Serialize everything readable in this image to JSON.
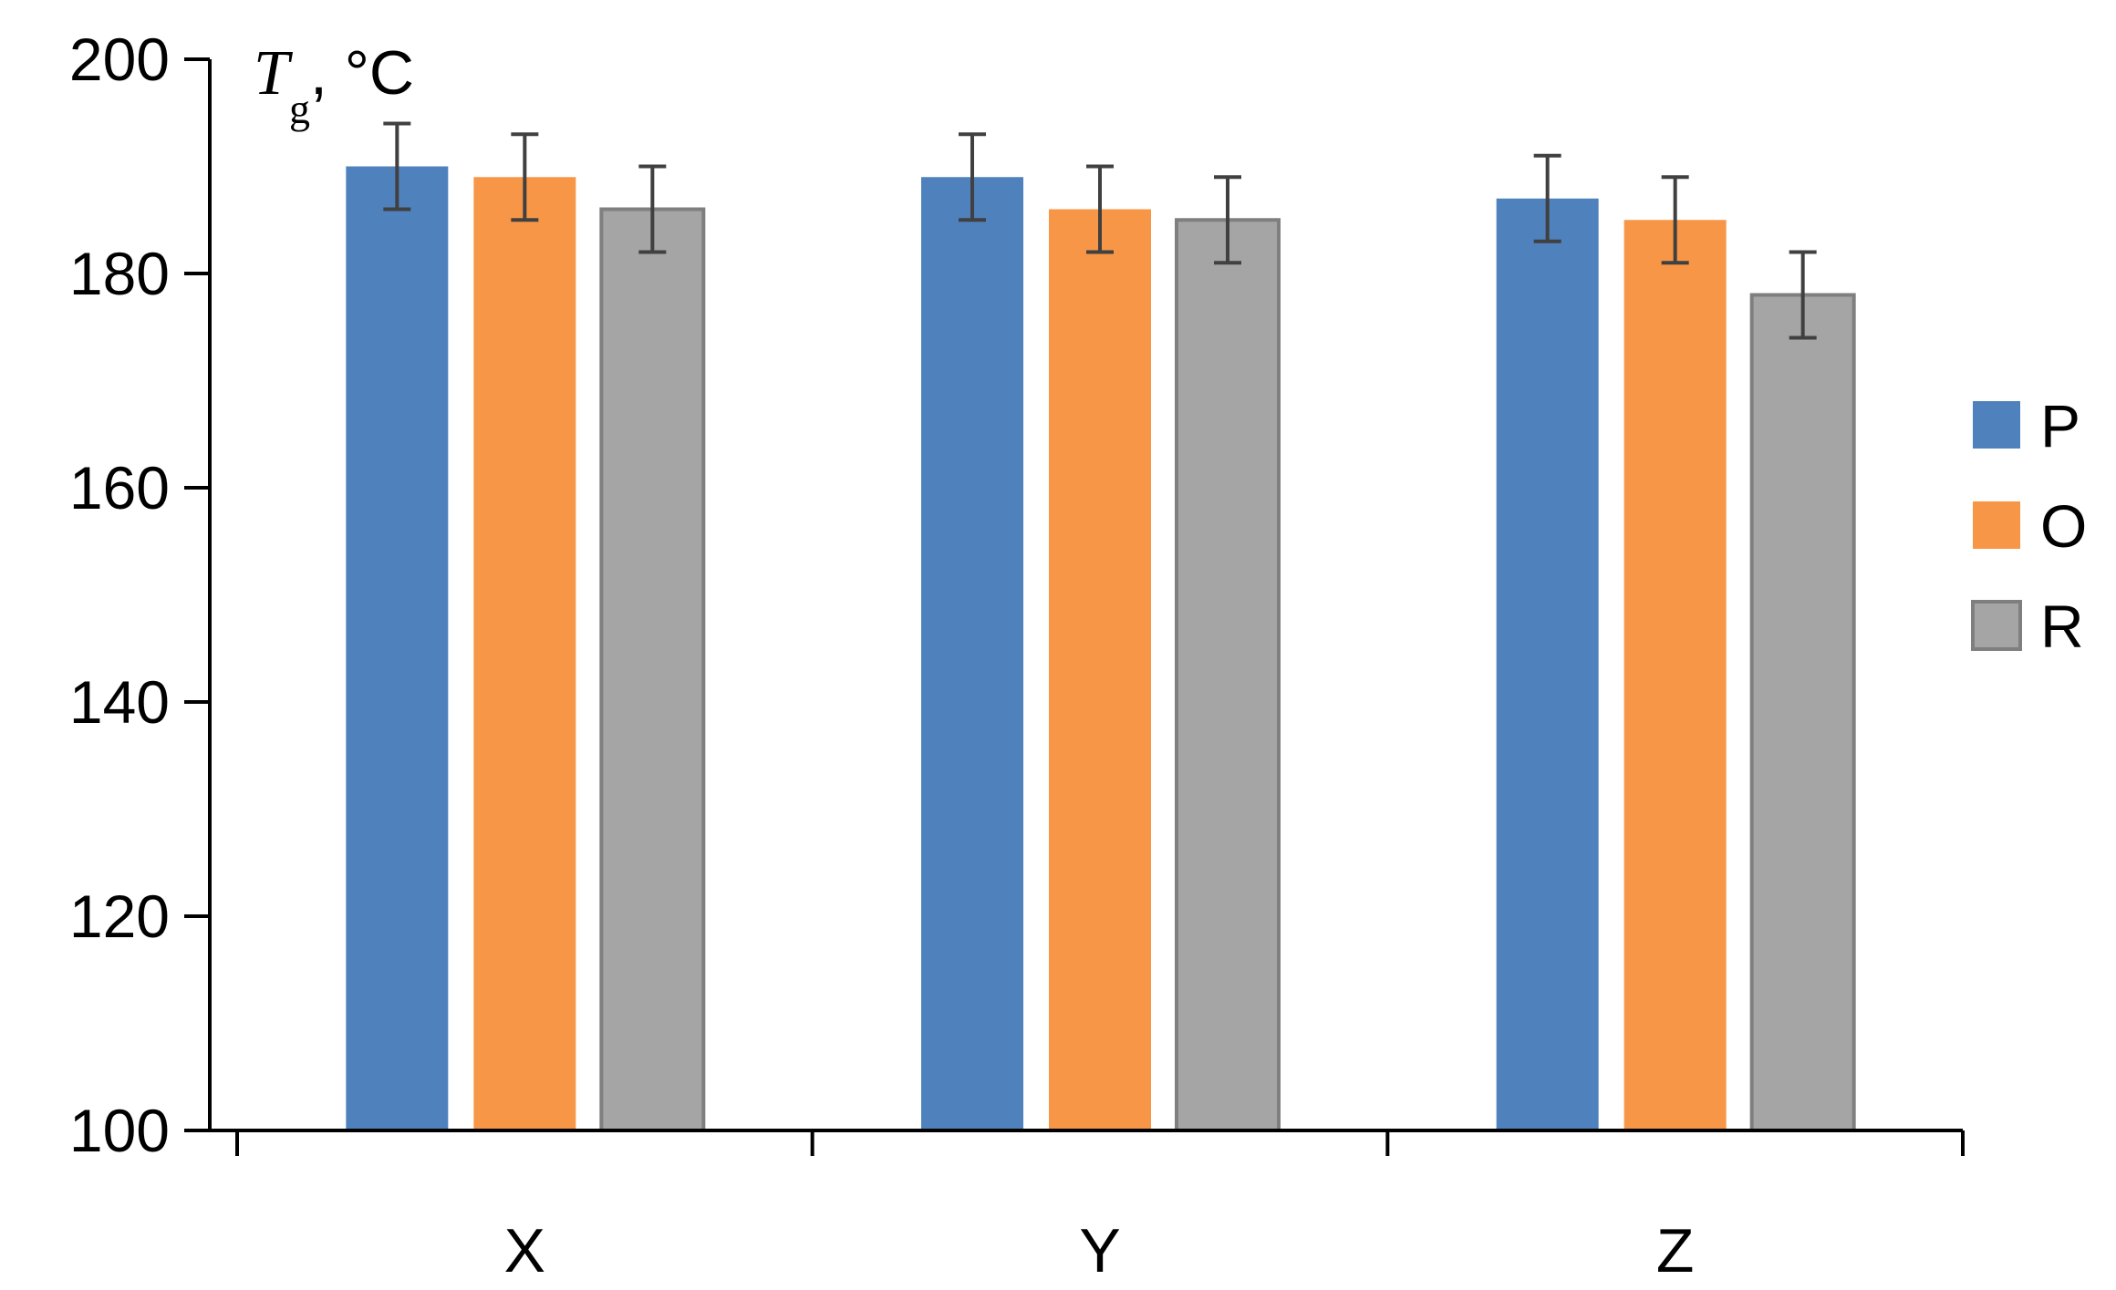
{
  "chart_data": {
    "type": "bar",
    "title": "",
    "ylabel": {
      "symbol": "T",
      "subscript": "g",
      "unit": ", °C"
    },
    "xlabel": "",
    "ylim": [
      100,
      200
    ],
    "yticks": [
      "100",
      "120",
      "140",
      "160",
      "180",
      "200"
    ],
    "categories": [
      "X",
      "Y",
      "Z"
    ],
    "series": [
      {
        "name": "P",
        "color": "#4f81bd",
        "values": [
          190,
          189,
          187
        ],
        "errors": [
          4,
          4,
          4
        ]
      },
      {
        "name": "O",
        "color": "#f79646",
        "values": [
          189,
          186,
          185
        ],
        "errors": [
          4,
          4,
          4
        ]
      },
      {
        "name": "R",
        "color": "#a5a5a5",
        "values": [
          186,
          185,
          178
        ],
        "errors": [
          4,
          4,
          4
        ]
      }
    ],
    "legend_position": "right",
    "grid": false
  }
}
